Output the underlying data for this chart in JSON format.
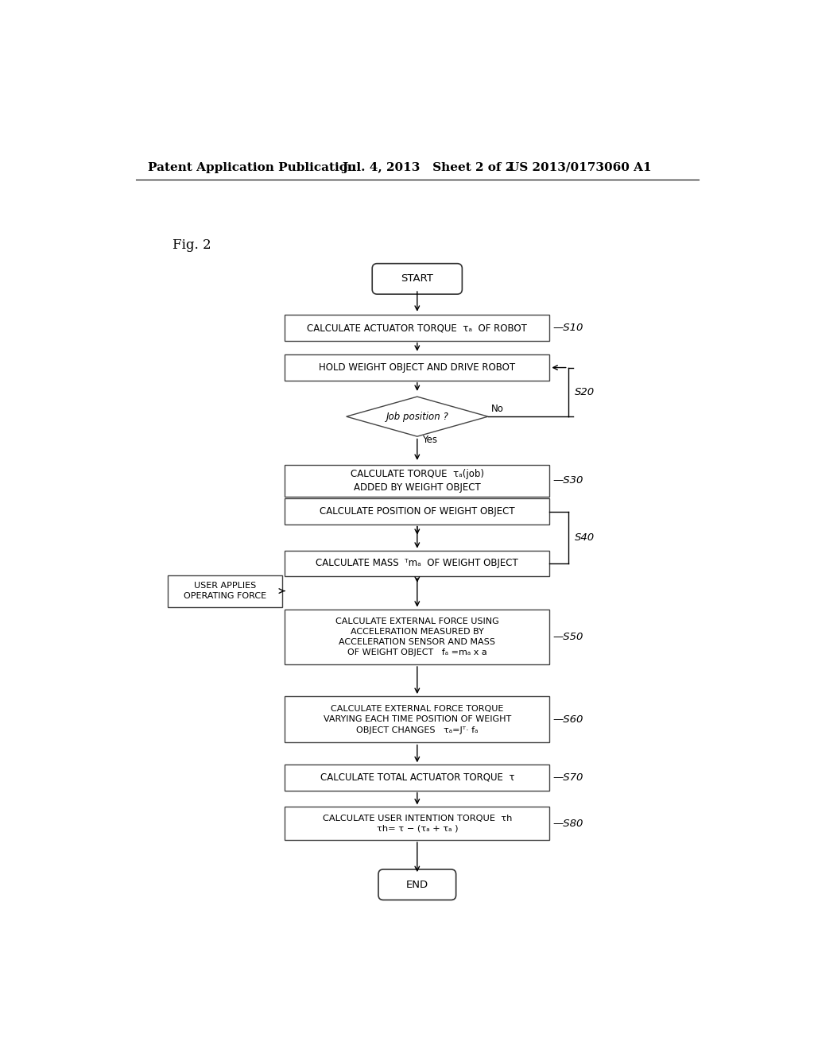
{
  "header_left": "Patent Application Publication",
  "header_mid": "Jul. 4, 2013   Sheet 2 of 2",
  "header_right": "US 2013/0173060 A1",
  "fig_label": "Fig. 2",
  "background": "#ffffff",
  "box_edge": "#555555",
  "text_color": "#111111"
}
